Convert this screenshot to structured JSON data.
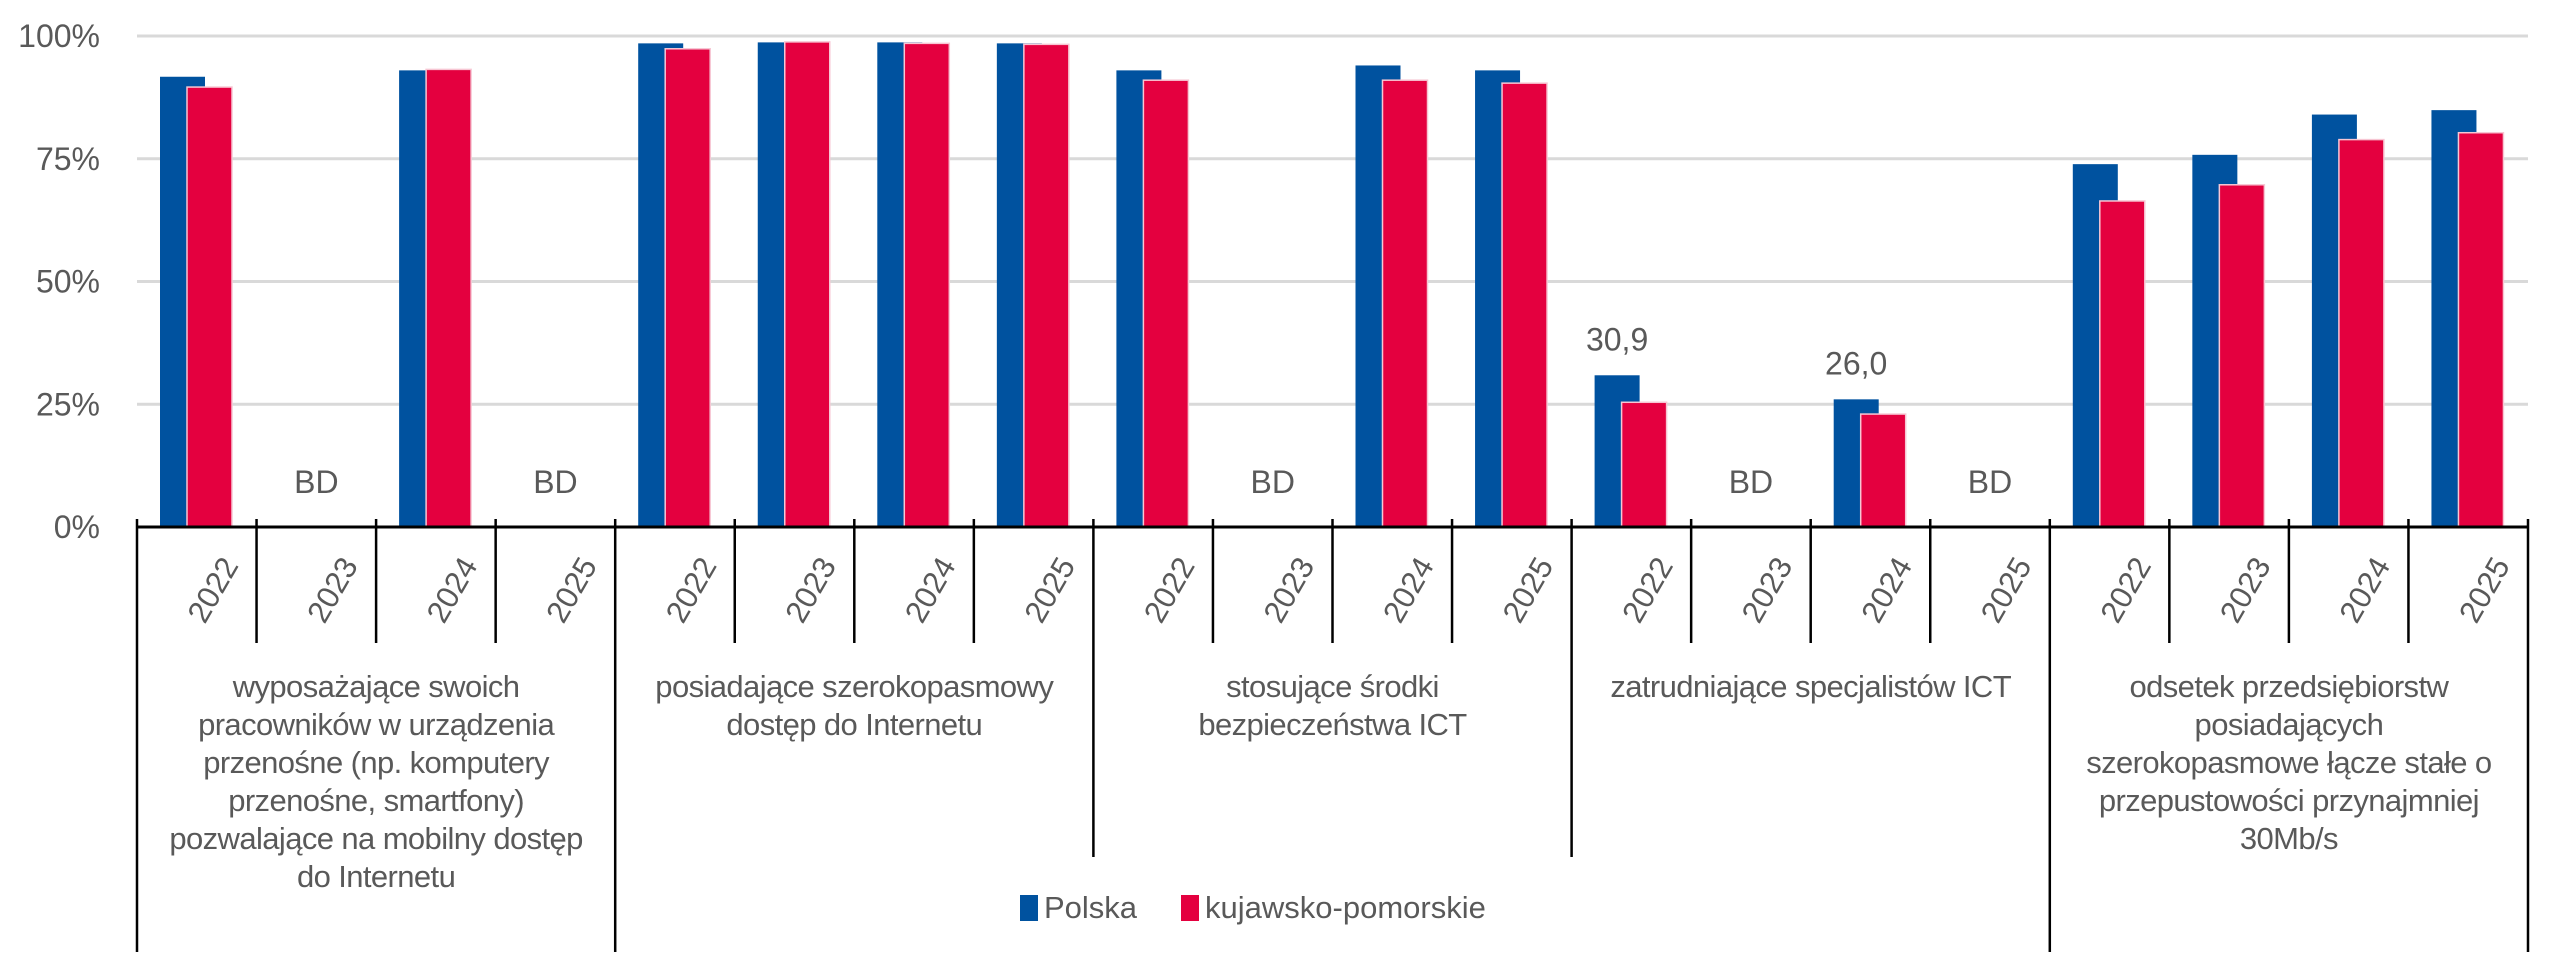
{
  "chart_data": {
    "type": "bar",
    "title": "",
    "xlabel": "",
    "ylabel": "",
    "ylim": [
      0,
      100
    ],
    "yticks": [
      "0%",
      "25%",
      "50%",
      "75%",
      "100%"
    ],
    "grid": true,
    "legend_position": "bottom-center",
    "groups": [
      {
        "label": "wyposażające swoich pracowników w urządzenia przenośne (np. komputery przenośne, smartfony) pozwalające na mobilny dostęp do Internetu",
        "lines": [
          "wyposażające swoich",
          "pracowników w urządzenia",
          "przenośne (np. komputery",
          "przenośne, smartfony)",
          "pozwalające na mobilny dostęp",
          "do Internetu"
        ]
      },
      {
        "label": "posiadające szerokopasmowy dostęp do Internetu",
        "lines": [
          "posiadające szerokopasmowy",
          "dostęp do Internetu"
        ]
      },
      {
        "label": "stosujące środki bezpieczeństwa ICT",
        "lines": [
          "stosujące środki",
          "bezpieczeństwa ICT"
        ]
      },
      {
        "label": "zatrudniające specjalistów ICT",
        "lines": [
          "zatrudniające specjalistów ICT"
        ]
      },
      {
        "label": "odsetek przedsiębiorstw posiadających szerokopasmowe łącze stałe o przepustowości przynajmniej 30Mb/s",
        "lines": [
          "odsetek przedsiębiorstw",
          "posiadających",
          "szerokopasmowe łącze stałe o",
          "przepustowości przynajmniej",
          "30Mb/s"
        ]
      }
    ],
    "categories": [
      "2022",
      "2023",
      "2024",
      "2025",
      "2022",
      "2023",
      "2024",
      "2025",
      "2022",
      "2023",
      "2024",
      "2025",
      "2022",
      "2023",
      "2024",
      "2025",
      "2022",
      "2023",
      "2024",
      "2025"
    ],
    "series": [
      {
        "name": "Polska",
        "color": "#00529F",
        "values": [
          91.7,
          null,
          93.0,
          null,
          98.5,
          98.7,
          98.7,
          98.5,
          93.0,
          null,
          94.0,
          93.0,
          30.9,
          null,
          26.0,
          null,
          73.9,
          75.8,
          84.0,
          84.9
        ]
      },
      {
        "name": "kujawsko-pomorskie",
        "color": "#E4003F",
        "values": [
          89.6,
          null,
          93.2,
          null,
          97.4,
          98.8,
          98.5,
          98.3,
          91.0,
          null,
          91.0,
          90.4,
          25.4,
          null,
          23.0,
          null,
          66.4,
          69.7,
          78.9,
          80.3
        ]
      }
    ],
    "missing_label": "BD",
    "data_labels": [
      {
        "category_index": 12,
        "series": 0,
        "text": "30,9"
      },
      {
        "category_index": 14,
        "series": 0,
        "text": "26,0"
      }
    ]
  }
}
